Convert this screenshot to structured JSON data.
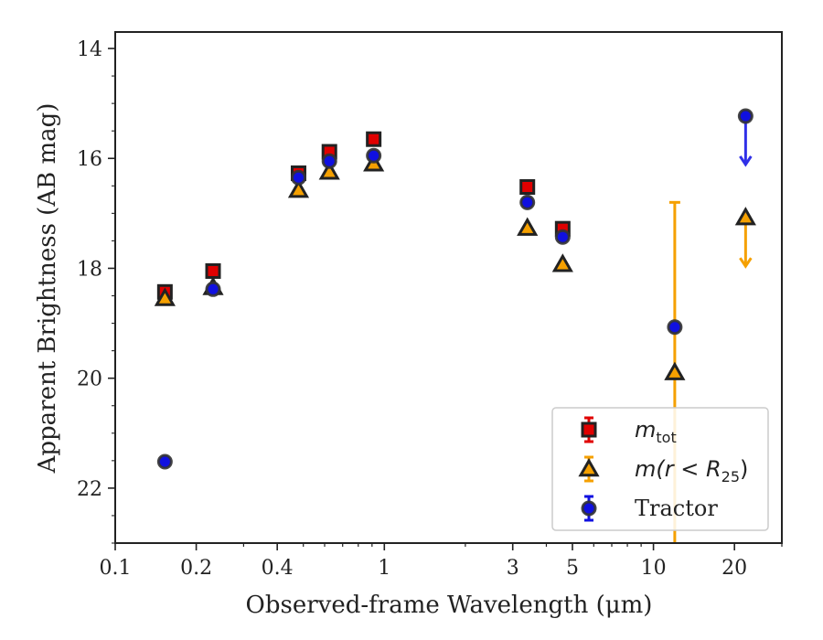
{
  "chart_data": {
    "type": "scatter",
    "xlabel": "Observed-frame Wavelength (μm)",
    "ylabel": "Apparent Brightness (AB mag)",
    "x_scale": "log",
    "xlim": [
      0.1,
      30
    ],
    "ylim": [
      23,
      13.7
    ],
    "y_inverted": true,
    "x_ticks": [
      0.1,
      0.2,
      0.4,
      1,
      3,
      5,
      10,
      20
    ],
    "x_tick_labels": [
      "0.1",
      "0.2",
      "0.4",
      "1",
      "3",
      "5",
      "10",
      "20"
    ],
    "y_ticks": [
      14,
      16,
      18,
      20,
      22
    ],
    "y_tick_labels": [
      "14",
      "16",
      "18",
      "20",
      "22"
    ],
    "grid": false,
    "legend_position": "bottom-right",
    "series": [
      {
        "name": "m_tot",
        "legend_main": "m",
        "legend_sub": "tot",
        "marker": "square",
        "color": "#e00000",
        "edge_color": "#222222",
        "points": [
          {
            "x": 0.153,
            "y": 18.43
          },
          {
            "x": 0.231,
            "y": 18.05
          },
          {
            "x": 0.48,
            "y": 16.27
          },
          {
            "x": 0.625,
            "y": 15.88
          },
          {
            "x": 0.913,
            "y": 15.65
          },
          {
            "x": 3.4,
            "y": 16.52
          },
          {
            "x": 4.6,
            "y": 17.28
          }
        ]
      },
      {
        "name": "m(r < R25)",
        "legend_main": "m(r < R",
        "legend_sub": "25",
        "legend_end": ")",
        "marker": "triangle",
        "color": "#f5a000",
        "edge_color": "#222222",
        "points": [
          {
            "x": 0.153,
            "y": 18.55
          },
          {
            "x": 0.231,
            "y": 18.35
          },
          {
            "x": 0.48,
            "y": 16.58
          },
          {
            "x": 0.625,
            "y": 16.25
          },
          {
            "x": 0.913,
            "y": 16.1
          },
          {
            "x": 3.4,
            "y": 17.27
          },
          {
            "x": 4.6,
            "y": 17.93
          },
          {
            "x": 12.0,
            "y": 19.9
          },
          {
            "x": 22.0,
            "y": 17.08,
            "upper_limit": true
          }
        ],
        "error_bars": [
          {
            "x": 12.0,
            "lower": 16.8,
            "upper": 23.0
          }
        ]
      },
      {
        "name": "Tractor",
        "legend_main": "Tractor",
        "marker": "circle",
        "color": "#1010e0",
        "edge_color": "#333333",
        "points": [
          {
            "x": 0.153,
            "y": 21.52
          },
          {
            "x": 0.231,
            "y": 18.38
          },
          {
            "x": 0.48,
            "y": 16.35
          },
          {
            "x": 0.625,
            "y": 16.05
          },
          {
            "x": 0.913,
            "y": 15.95
          },
          {
            "x": 3.4,
            "y": 16.8
          },
          {
            "x": 4.6,
            "y": 17.43
          },
          {
            "x": 12.0,
            "y": 19.07
          },
          {
            "x": 22.0,
            "y": 15.23,
            "upper_limit": true
          }
        ]
      }
    ]
  }
}
